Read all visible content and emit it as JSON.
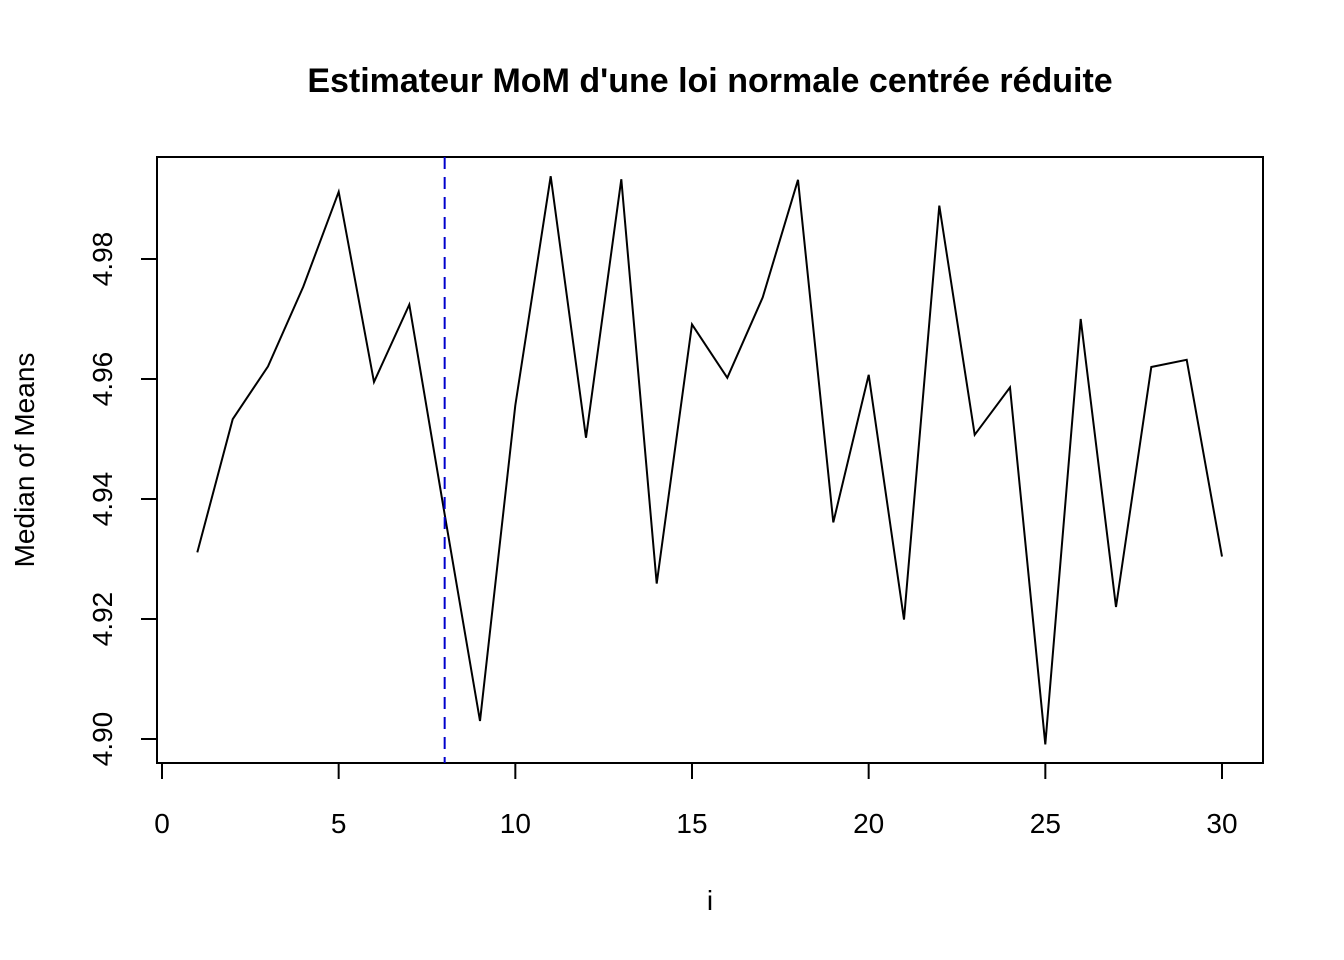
{
  "chart_data": {
    "type": "line",
    "title": "Estimateur MoM d'une loi normale centrée réduite",
    "xlabel": "i",
    "ylabel": "Median of Means",
    "xlim": [
      0,
      30
    ],
    "ylim": [
      4.896,
      4.997
    ],
    "x_ticks": [
      "0",
      "5",
      "10",
      "15",
      "20",
      "25",
      "30"
    ],
    "y_ticks": [
      "4.90",
      "4.92",
      "4.94",
      "4.96",
      "4.98"
    ],
    "grid": false,
    "series": [
      {
        "color": "#000000",
        "x": [
          1,
          2,
          3,
          4,
          5,
          6,
          7,
          8,
          9,
          10,
          11,
          12,
          13,
          14,
          15,
          16,
          17,
          18,
          19,
          20,
          21,
          22,
          23,
          24,
          25,
          26,
          27,
          28,
          29,
          30
        ],
        "values": [
          4.9311,
          4.9533,
          4.9621,
          4.9754,
          4.9912,
          4.9595,
          4.9724,
          4.9374,
          4.903,
          4.9556,
          4.9938,
          4.9502,
          4.9933,
          4.9259,
          4.9691,
          4.9602,
          4.9736,
          4.9932,
          4.9361,
          4.9607,
          4.9199,
          4.9889,
          4.9507,
          4.9586,
          4.8991,
          4.97,
          4.922,
          4.962,
          4.9632,
          4.9304
        ]
      }
    ],
    "vline": {
      "x": 8,
      "color": "#0000cc",
      "style": "dashed"
    }
  }
}
